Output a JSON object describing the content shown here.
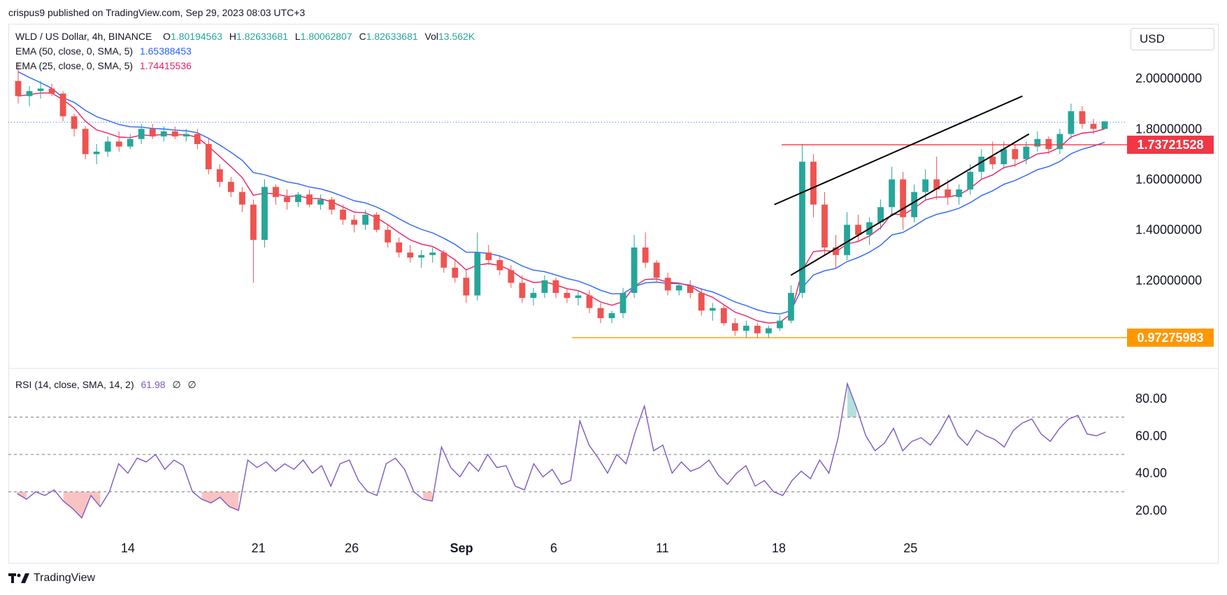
{
  "header": {
    "text": "crispus9 published on TradingView.com, Sep 29, 2023 08:03 UTC+3"
  },
  "legend": {
    "symbol": "WLD / US Dollar, 4h, BINANCE",
    "o_label": "O",
    "o_value": "1.80194563",
    "h_label": "H",
    "h_value": "1.82633681",
    "l_label": "L",
    "l_value": "1.80062807",
    "c_label": "C",
    "c_value": "1.82633681",
    "vol_label": "Vol",
    "vol_value": "13.562K",
    "ema50_label": "EMA (50, close, 0, SMA, 5)",
    "ema50_value": "1.65388453",
    "ema25_label": "EMA (25, close, 0, SMA, 5)",
    "ema25_value": "1.74415536",
    "rsi_label": "RSI (14, close, SMA, 14, 2)",
    "rsi_value": "61.98",
    "rsi_na1": "∅",
    "rsi_na2": "∅"
  },
  "currency": "USD",
  "footer": {
    "brand": "TradingView"
  },
  "colors": {
    "up": "#26a69a",
    "down": "#ef5350",
    "ema50": "#2962ff",
    "ema25": "#e91e63",
    "rsi": "#7e57c2",
    "resistance": "#f23645",
    "support": "#ff9800",
    "trend": "#000000",
    "last_price": "#2962ff"
  },
  "chart_data": [
    {
      "type": "candlestick",
      "pane": "price",
      "x_ticks": [
        "14",
        "21",
        "26",
        "Sep",
        "6",
        "11",
        "18",
        "25"
      ],
      "y_ticks": [
        "2.00000000",
        "1.80000000",
        "1.60000000",
        "1.40000000",
        "1.20000000"
      ],
      "ylim": [
        0.87,
        2.2
      ],
      "grid": false,
      "overlays": [
        {
          "name": "EMA 50",
          "color": "#2962ff",
          "last": 1.65388453
        },
        {
          "name": "EMA 25",
          "color": "#e91e63",
          "last": 1.74415536
        }
      ],
      "horizontal_levels": [
        {
          "value": 1.73721528,
          "label": "1.73721528",
          "color": "#f23645"
        },
        {
          "value": 0.97275983,
          "label": "0.97275983",
          "color": "#ff9800"
        }
      ],
      "last_price": 1.82633681,
      "trendlines": [
        {
          "from": [
            0.694,
            1.5
          ],
          "to": [
            0.92,
            1.93
          ]
        },
        {
          "from": [
            0.709,
            1.22
          ],
          "to": [
            0.926,
            1.78
          ]
        }
      ],
      "candles": [
        [
          1.99,
          2.06,
          1.9,
          1.93
        ],
        [
          1.93,
          1.97,
          1.89,
          1.95
        ],
        [
          1.95,
          1.99,
          1.92,
          1.96
        ],
        [
          1.96,
          1.98,
          1.93,
          1.94
        ],
        [
          1.94,
          1.95,
          1.83,
          1.85
        ],
        [
          1.85,
          1.86,
          1.77,
          1.8
        ],
        [
          1.8,
          1.81,
          1.68,
          1.7
        ],
        [
          1.7,
          1.74,
          1.66,
          1.71
        ],
        [
          1.71,
          1.77,
          1.69,
          1.75
        ],
        [
          1.75,
          1.79,
          1.71,
          1.73
        ],
        [
          1.73,
          1.78,
          1.72,
          1.76
        ],
        [
          1.76,
          1.82,
          1.74,
          1.8
        ],
        [
          1.8,
          1.82,
          1.76,
          1.77
        ],
        [
          1.77,
          1.81,
          1.75,
          1.79
        ],
        [
          1.79,
          1.81,
          1.76,
          1.77
        ],
        [
          1.77,
          1.8,
          1.75,
          1.78
        ],
        [
          1.78,
          1.8,
          1.72,
          1.74
        ],
        [
          1.74,
          1.76,
          1.62,
          1.64
        ],
        [
          1.64,
          1.66,
          1.57,
          1.59
        ],
        [
          1.59,
          1.61,
          1.53,
          1.55
        ],
        [
          1.55,
          1.57,
          1.47,
          1.5
        ],
        [
          1.5,
          1.52,
          1.19,
          1.36
        ],
        [
          1.36,
          1.6,
          1.33,
          1.57
        ],
        [
          1.57,
          1.58,
          1.5,
          1.53
        ],
        [
          1.53,
          1.56,
          1.48,
          1.51
        ],
        [
          1.51,
          1.55,
          1.49,
          1.54
        ],
        [
          1.54,
          1.56,
          1.49,
          1.5
        ],
        [
          1.5,
          1.54,
          1.48,
          1.52
        ],
        [
          1.52,
          1.53,
          1.46,
          1.48
        ],
        [
          1.48,
          1.5,
          1.42,
          1.44
        ],
        [
          1.44,
          1.46,
          1.39,
          1.42
        ],
        [
          1.42,
          1.48,
          1.4,
          1.46
        ],
        [
          1.46,
          1.47,
          1.39,
          1.4
        ],
        [
          1.4,
          1.42,
          1.33,
          1.35
        ],
        [
          1.35,
          1.37,
          1.29,
          1.31
        ],
        [
          1.31,
          1.34,
          1.27,
          1.29
        ],
        [
          1.29,
          1.32,
          1.25,
          1.3
        ],
        [
          1.3,
          1.33,
          1.27,
          1.31
        ],
        [
          1.31,
          1.32,
          1.23,
          1.25
        ],
        [
          1.25,
          1.28,
          1.19,
          1.21
        ],
        [
          1.21,
          1.24,
          1.11,
          1.14
        ],
        [
          1.14,
          1.39,
          1.12,
          1.31
        ],
        [
          1.31,
          1.34,
          1.26,
          1.28
        ],
        [
          1.28,
          1.3,
          1.22,
          1.24
        ],
        [
          1.24,
          1.26,
          1.17,
          1.19
        ],
        [
          1.19,
          1.22,
          1.11,
          1.13
        ],
        [
          1.13,
          1.17,
          1.1,
          1.15
        ],
        [
          1.15,
          1.22,
          1.13,
          1.2
        ],
        [
          1.2,
          1.21,
          1.13,
          1.15
        ],
        [
          1.15,
          1.17,
          1.11,
          1.13
        ],
        [
          1.13,
          1.16,
          1.1,
          1.14
        ],
        [
          1.14,
          1.16,
          1.07,
          1.09
        ],
        [
          1.09,
          1.11,
          1.03,
          1.05
        ],
        [
          1.05,
          1.08,
          1.03,
          1.07
        ],
        [
          1.07,
          1.17,
          1.05,
          1.15
        ],
        [
          1.15,
          1.38,
          1.13,
          1.33
        ],
        [
          1.33,
          1.39,
          1.25,
          1.27
        ],
        [
          1.27,
          1.28,
          1.19,
          1.21
        ],
        [
          1.21,
          1.23,
          1.14,
          1.16
        ],
        [
          1.16,
          1.19,
          1.14,
          1.18
        ],
        [
          1.18,
          1.2,
          1.13,
          1.15
        ],
        [
          1.15,
          1.17,
          1.06,
          1.08
        ],
        [
          1.08,
          1.11,
          1.04,
          1.09
        ],
        [
          1.09,
          1.1,
          1.02,
          1.03
        ],
        [
          1.03,
          1.05,
          0.98,
          1.0
        ],
        [
          1.0,
          1.04,
          0.97,
          1.02
        ],
        [
          1.02,
          1.03,
          0.97,
          0.99
        ],
        [
          0.99,
          1.02,
          0.97,
          1.01
        ],
        [
          1.01,
          1.06,
          1.0,
          1.04
        ],
        [
          1.04,
          1.18,
          1.03,
          1.15
        ],
        [
          1.15,
          1.74,
          1.13,
          1.67
        ],
        [
          1.67,
          1.7,
          1.45,
          1.5
        ],
        [
          1.5,
          1.55,
          1.3,
          1.33
        ],
        [
          1.33,
          1.38,
          1.25,
          1.3
        ],
        [
          1.3,
          1.47,
          1.28,
          1.42
        ],
        [
          1.42,
          1.46,
          1.35,
          1.38
        ],
        [
          1.38,
          1.45,
          1.34,
          1.43
        ],
        [
          1.43,
          1.52,
          1.4,
          1.49
        ],
        [
          1.49,
          1.65,
          1.46,
          1.6
        ],
        [
          1.6,
          1.63,
          1.4,
          1.45
        ],
        [
          1.45,
          1.58,
          1.43,
          1.55
        ],
        [
          1.55,
          1.64,
          1.52,
          1.6
        ],
        [
          1.6,
          1.69,
          1.52,
          1.56
        ],
        [
          1.56,
          1.6,
          1.5,
          1.53
        ],
        [
          1.53,
          1.58,
          1.5,
          1.56
        ],
        [
          1.56,
          1.66,
          1.54,
          1.63
        ],
        [
          1.63,
          1.72,
          1.6,
          1.69
        ],
        [
          1.69,
          1.75,
          1.64,
          1.66
        ],
        [
          1.66,
          1.75,
          1.64,
          1.72
        ],
        [
          1.72,
          1.74,
          1.65,
          1.68
        ],
        [
          1.68,
          1.75,
          1.66,
          1.73
        ],
        [
          1.73,
          1.79,
          1.71,
          1.76
        ],
        [
          1.76,
          1.77,
          1.7,
          1.72
        ],
        [
          1.72,
          1.8,
          1.7,
          1.78
        ],
        [
          1.78,
          1.9,
          1.76,
          1.87
        ],
        [
          1.87,
          1.89,
          1.8,
          1.82
        ],
        [
          1.82,
          1.84,
          1.78,
          1.8
        ],
        [
          1.8,
          1.83,
          1.8,
          1.83
        ]
      ]
    },
    {
      "type": "line",
      "pane": "rsi",
      "name": "RSI (14, close, SMA, 14, 2)",
      "y_ticks": [
        "80.00",
        "60.00",
        "40.00",
        "20.00"
      ],
      "ylim": [
        5,
        95
      ],
      "bands": [
        70,
        50,
        30
      ],
      "values": [
        29,
        26,
        30,
        28,
        31,
        25,
        21,
        16,
        28,
        22,
        30,
        45,
        40,
        48,
        46,
        50,
        42,
        47,
        44,
        30,
        26,
        24,
        27,
        22,
        20,
        47,
        43,
        46,
        41,
        45,
        42,
        47,
        40,
        44,
        33,
        45,
        47,
        36,
        30,
        28,
        45,
        48,
        42,
        30,
        26,
        25,
        54,
        43,
        38,
        46,
        41,
        50,
        43,
        44,
        33,
        31,
        45,
        38,
        42,
        34,
        36,
        68,
        55,
        48,
        40,
        50,
        45,
        62,
        76,
        52,
        55,
        40,
        46,
        41,
        43,
        47,
        39,
        34,
        40,
        44,
        33,
        36,
        30,
        28,
        36,
        41,
        37,
        47,
        40,
        59,
        88,
        75,
        60,
        52,
        56,
        64,
        52,
        57,
        59,
        55,
        62,
        71,
        60,
        55,
        63,
        60,
        58,
        54,
        63,
        67,
        69,
        61,
        57,
        64,
        69,
        71,
        61,
        60,
        62
      ]
    }
  ]
}
